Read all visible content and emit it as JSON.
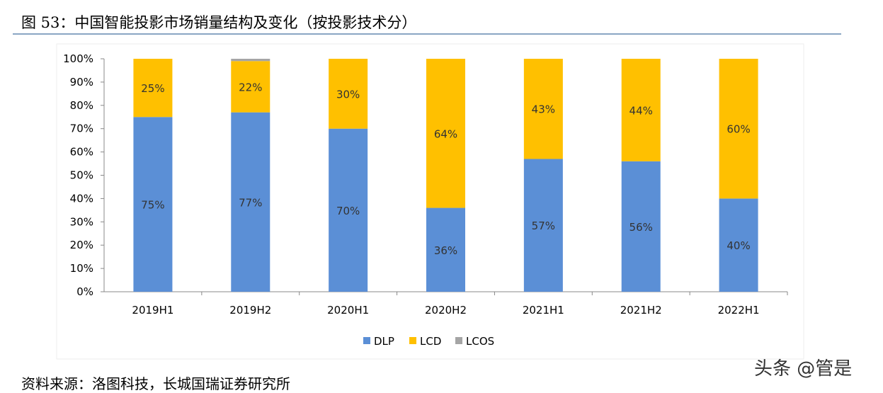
{
  "title": "图 53：中国智能投影市场销量结构及变化（按投影技术分）",
  "source": "资料来源：洛图科技，长城国瑞证券研究所",
  "watermark": "头条 @管是",
  "chart_data": {
    "type": "bar",
    "stacked": true,
    "categories": [
      "2019H1",
      "2019H2",
      "2020H1",
      "2020H2",
      "2021H1",
      "2021H2",
      "2022H1"
    ],
    "series": [
      {
        "name": "DLP",
        "color": "#5b8fd6",
        "values": [
          75,
          77,
          70,
          36,
          57,
          56,
          40
        ],
        "labels": [
          "75%",
          "77%",
          "70%",
          "36%",
          "57%",
          "56%",
          "40%"
        ]
      },
      {
        "name": "LCD",
        "color": "#ffc000",
        "values": [
          25,
          22,
          30,
          64,
          43,
          44,
          60
        ],
        "labels": [
          "25%",
          "22%",
          "30%",
          "64%",
          "43%",
          "44%",
          "60%"
        ]
      },
      {
        "name": "LCOS",
        "color": "#a5a5a5",
        "values": [
          0,
          1,
          0,
          0,
          0,
          0,
          0
        ],
        "labels": [
          "",
          "",
          "",
          "",
          "",
          "",
          ""
        ]
      }
    ],
    "ylim": [
      0,
      100
    ],
    "yticks": [
      "0%",
      "10%",
      "20%",
      "30%",
      "40%",
      "50%",
      "60%",
      "70%",
      "80%",
      "90%",
      "100%"
    ],
    "grid": false,
    "legend": "bottom"
  }
}
